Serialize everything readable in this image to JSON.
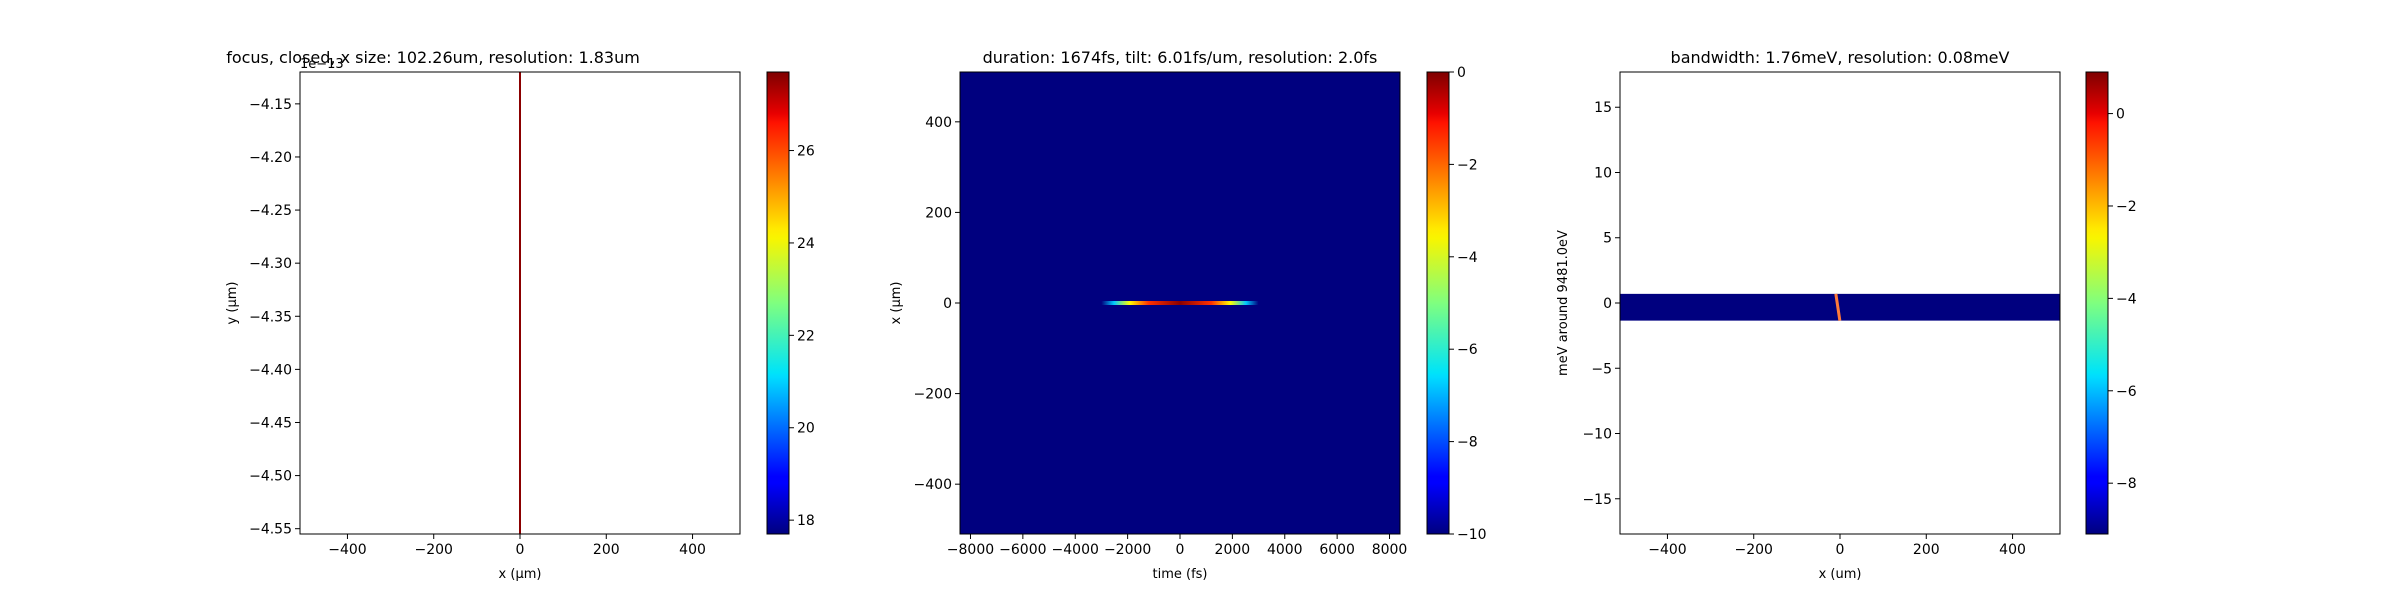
{
  "chart_data": [
    {
      "type": "heatmap",
      "title": "focus, closed, x size: 102.26um, resolution: 1.83um",
      "xlabel": "x (μm)",
      "ylabel": "y (μm)",
      "xlim": [
        -510,
        510
      ],
      "ylim": [
        -4.555,
        -4.12
      ],
      "x_ticks": [
        -400,
        -200,
        0,
        200,
        400
      ],
      "x_tick_labels": [
        "−400",
        "−200",
        "0",
        "200",
        "400"
      ],
      "y_ticks": [
        -4.15,
        -4.2,
        -4.25,
        -4.3,
        -4.35,
        -4.4,
        -4.45,
        -4.5,
        -4.55
      ],
      "y_tick_labels": [
        "−4.15",
        "−4.20",
        "−4.25",
        "−4.30",
        "−4.35",
        "−4.40",
        "−4.45",
        "−4.50",
        "−4.55"
      ],
      "y_offset_text": "1e−13",
      "background_color": "#ffffff",
      "feature": {
        "kind": "vertical_line",
        "x": 0,
        "color": "#8b0000"
      },
      "colorbar": {
        "range": [
          17.7,
          27.7
        ],
        "ticks": [
          18,
          20,
          22,
          24,
          26
        ],
        "tick_labels": [
          "18",
          "20",
          "22",
          "24",
          "26"
        ]
      }
    },
    {
      "type": "heatmap",
      "title": "duration: 1674fs, tilt: 6.01fs/um, resolution: 2.0fs",
      "xlabel": "time (fs)",
      "ylabel": "x (μm)",
      "xlim": [
        -8400,
        8400
      ],
      "ylim": [
        -510,
        510
      ],
      "x_ticks": [
        -8000,
        -6000,
        -4000,
        -2000,
        0,
        2000,
        4000,
        6000,
        8000
      ],
      "x_tick_labels": [
        "−8000",
        "−6000",
        "−4000",
        "−2000",
        "0",
        "2000",
        "4000",
        "6000",
        "8000"
      ],
      "y_ticks": [
        400,
        200,
        0,
        -200,
        -400
      ],
      "y_tick_labels": [
        "400",
        "200",
        "0",
        "−200",
        "−400"
      ],
      "background_color": "#00007f",
      "feature": {
        "kind": "horizontal_streak",
        "y": 0,
        "x_range": [
          -3000,
          3000
        ]
      },
      "colorbar": {
        "range": [
          -10,
          0
        ],
        "ticks": [
          0,
          -2,
          -4,
          -6,
          -8,
          -10
        ],
        "tick_labels": [
          "0",
          "−2",
          "−4",
          "−6",
          "−8",
          "−10"
        ]
      }
    },
    {
      "type": "heatmap",
      "title": "bandwidth: 1.76meV, resolution: 0.08meV",
      "xlabel": "x (um)",
      "ylabel": "meV around 9481.0eV",
      "xlim": [
        -510,
        510
      ],
      "ylim": [
        -17.7,
        17.7
      ],
      "x_ticks": [
        -400,
        -200,
        0,
        200,
        400
      ],
      "x_tick_labels": [
        "−400",
        "−200",
        "0",
        "200",
        "400"
      ],
      "y_ticks": [
        15,
        10,
        5,
        0,
        -5,
        -10,
        -15
      ],
      "y_tick_labels": [
        "15",
        "10",
        "5",
        "0",
        "−5",
        "−10",
        "−15"
      ],
      "background_color": "#ffffff",
      "band": {
        "y_range": [
          -1.35,
          0.7
        ],
        "color": "#00007f"
      },
      "feature": {
        "kind": "thin_line",
        "x": -5,
        "y_range": [
          -1.35,
          0.7
        ]
      },
      "colorbar": {
        "range": [
          -9.1,
          0.9
        ],
        "ticks": [
          0,
          -2,
          -4,
          -6,
          -8
        ],
        "tick_labels": [
          "0",
          "−2",
          "−4",
          "−6",
          "−8"
        ]
      }
    }
  ]
}
